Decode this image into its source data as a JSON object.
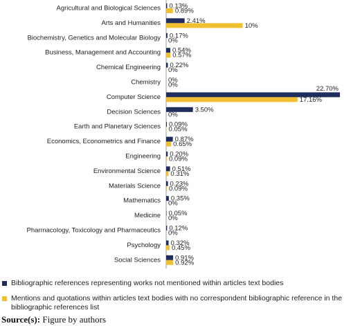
{
  "chart_data": {
    "type": "bar",
    "orientation": "horizontal",
    "categories": [
      "Agricultural and Biological Sciences",
      "Arts and Humanities",
      "Biochemistry, Genetics and Molecular Biology",
      "Business, Management and Accounting",
      "Chemical Engineering",
      "Chemistry",
      "Computer Science",
      "Decision Sciences",
      "Earth and Planetary Sciences",
      "Economics, Econometrics and Finance",
      "Engineering",
      "Environmental Science",
      "Materials Science",
      "Mathematics",
      "Medicine",
      "Pharmacology, Toxicology and Pharmaceutics",
      "Psychology",
      "Social Sciences"
    ],
    "series": [
      {
        "name": "Bibliographic references representing works not mentioned within articles text bodies",
        "color": "#1f2d5c",
        "values": [
          0.13,
          2.41,
          0.17,
          0.54,
          0.22,
          0,
          22.7,
          3.5,
          0.09,
          0.87,
          0.2,
          0.51,
          0.23,
          0.35,
          0.05,
          0.12,
          0.32,
          0.91
        ],
        "value_labels": [
          "0.13%",
          "2.41%",
          "0.17%",
          "0.54%",
          "0.22%",
          "0%",
          "22.70%",
          "3.50%",
          "0.09%",
          "0.87%",
          "0.20%",
          "0.51%",
          "0.23%",
          "0.35%",
          "0.05%",
          "0.12%",
          "0.32%",
          "0.91%"
        ]
      },
      {
        "name": "Mentions and quotations within articles text bodies with no correspondent bibliographic reference in the bibliographic references list",
        "color": "#f0c030",
        "values": [
          0.89,
          10,
          0,
          0.57,
          0,
          0,
          17.16,
          0,
          0.05,
          0.65,
          0.09,
          0.31,
          0.09,
          0,
          0,
          0,
          0.45,
          0.92
        ],
        "value_labels": [
          "0.89%",
          "10%",
          "0%",
          "0.57%",
          "0%",
          "0%",
          "17.16%",
          "0%",
          "0.05%",
          "0.65%",
          "0.09%",
          "0.31%",
          "0.09%",
          "0%",
          "0%",
          "0%",
          "0.45%",
          "0.92%"
        ]
      }
    ],
    "source_label": "Source(s):",
    "source_text": "Figure by authors"
  }
}
